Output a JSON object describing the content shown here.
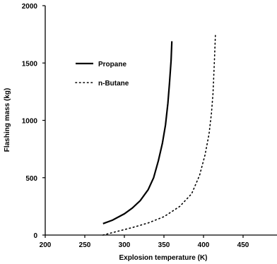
{
  "chart_data": {
    "type": "line",
    "xlabel": "Explosion temperature (K)",
    "ylabel": "Flashing mass (kg)",
    "xlim": [
      200,
      480
    ],
    "ylim": [
      0,
      2000
    ],
    "xticks": [
      200,
      250,
      300,
      350,
      400,
      450
    ],
    "yticks": [
      0,
      500,
      1000,
      1500,
      2000
    ],
    "grid": false,
    "legend": "upper-left",
    "series": [
      {
        "name": "Propane",
        "style": "solid",
        "color": "#000000",
        "x": [
          273,
          285,
          300,
          310,
          320,
          330,
          337,
          343,
          348,
          352,
          355,
          357,
          359,
          360
        ],
        "y": [
          100,
          130,
          185,
          235,
          300,
          395,
          500,
          650,
          800,
          960,
          1150,
          1320,
          1520,
          1690
        ]
      },
      {
        "name": "n-Butane",
        "style": "dotted",
        "color": "#000000",
        "x": [
          273,
          290,
          310,
          330,
          350,
          370,
          385,
          395,
          402,
          407,
          410,
          412,
          413,
          414,
          415
        ],
        "y": [
          0,
          30,
          65,
          105,
          160,
          250,
          360,
          520,
          700,
          880,
          1060,
          1230,
          1400,
          1560,
          1740
        ]
      }
    ]
  }
}
